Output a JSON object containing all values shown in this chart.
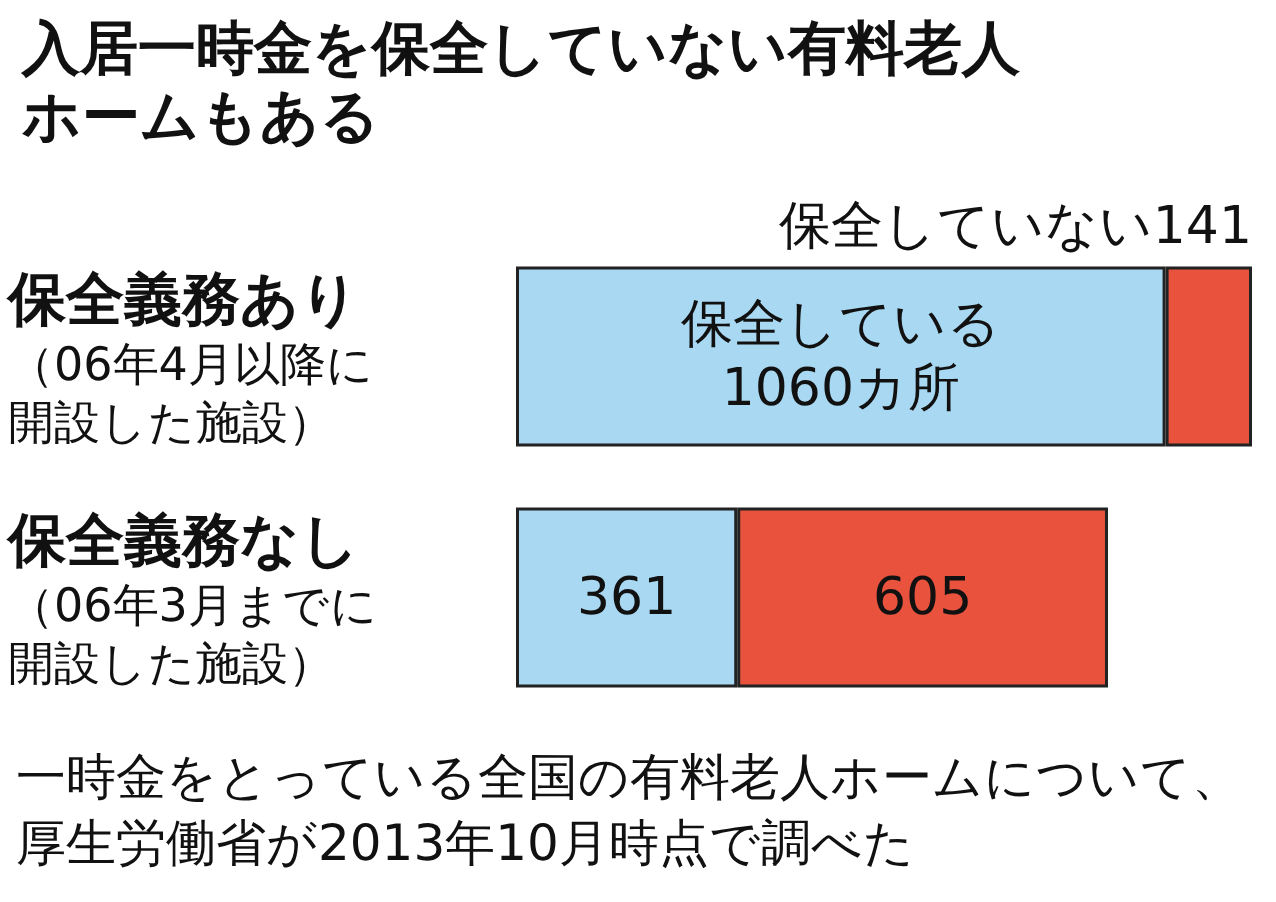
{
  "chart_data": {
    "type": "bar",
    "orientation": "horizontal",
    "title": "入居一時金を保全していない有料老人ホームもある",
    "categories": [
      "保全義務あり（06年4月以降に開設した施設）",
      "保全義務なし（06年3月までに開設した施設）"
    ],
    "series": [
      {
        "color": "#a9d9f2",
        "values": [
          1060,
          361
        ],
        "value_labels": [
          "保全している\n1060カ所",
          "361"
        ]
      },
      {
        "color": "#e9533d",
        "values": [
          141,
          605
        ],
        "value_labels": [
          "保全していない141",
          "605"
        ]
      }
    ],
    "annotations": [
      "一時金をとっている全国の有料老人ホームについて、厚生労働省が2013年10月時点で調べた"
    ],
    "stacked": true
  }
}
